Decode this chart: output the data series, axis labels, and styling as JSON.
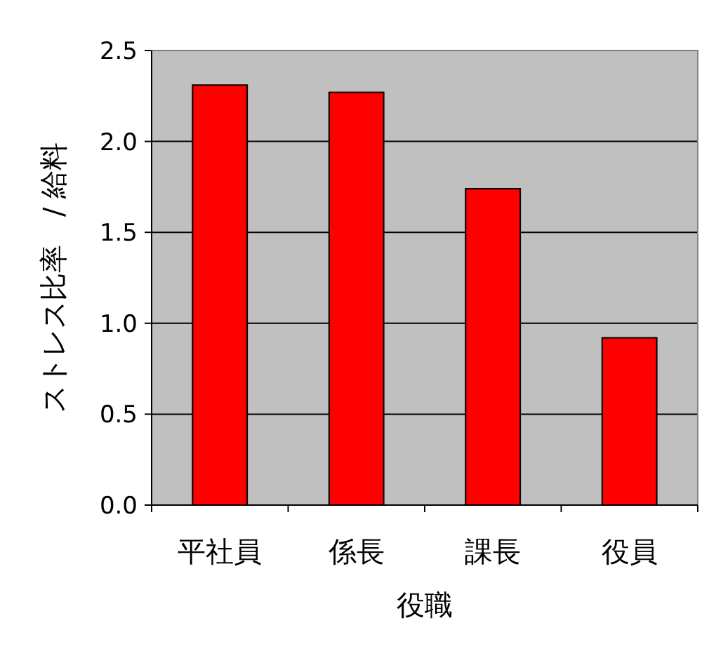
{
  "chart_data": {
    "type": "bar",
    "categories": [
      "平社員",
      "係長",
      "課長",
      "役員"
    ],
    "values": [
      2.31,
      2.27,
      1.74,
      0.92
    ],
    "color": "#ff0000",
    "xlabel": "役職",
    "ylabel": "ストレス比率　/ 給料",
    "ylim": [
      0,
      2.5
    ],
    "yticks": [
      {
        "value": 0,
        "label": "0.0"
      },
      {
        "value": 0.5,
        "label": "0.5"
      },
      {
        "value": 1,
        "label": "1.0"
      },
      {
        "value": 1.5,
        "label": "1.5"
      },
      {
        "value": 2,
        "label": "2.0"
      },
      {
        "value": 2.5,
        "label": "2.5"
      }
    ],
    "grid": "y"
  }
}
